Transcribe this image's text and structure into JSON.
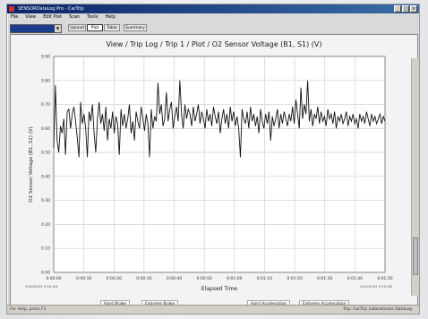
{
  "window": {
    "title": "SENSORDataLog Pro - CarTrip",
    "controls": [
      "_",
      "□",
      "×"
    ]
  },
  "menubar": {
    "items": [
      "File",
      "View",
      "Edit Plot",
      "Scan",
      "Tools",
      "Help"
    ]
  },
  "toolbar": {
    "combo_value": "",
    "buttons": [
      "Upload",
      "Plot",
      "Table",
      "Summary"
    ]
  },
  "plot": {
    "start_date": "3/10/2003 9:18 AM",
    "end_date": "3/10/2003 9:19 AM"
  },
  "legend": {
    "items": [
      "Hard Brake",
      "Extreme Brake",
      "Hard Acceleration",
      "Extreme Acceleration"
    ]
  },
  "statusbar": {
    "left": "For Help, press F1",
    "right": "Trip: CarTrip Laboratories DataLog"
  },
  "chart_data": {
    "type": "line",
    "title": "View / Trip Log / Trip 1 / Plot / O2 Sensor Voltage (B1, S1) (V)",
    "xlabel": "Elapsed Time",
    "ylabel": "O2 Sensor Voltage (B1, S1) (V)",
    "ylim": [
      0,
      0.9
    ],
    "yticks": [
      "0.00",
      "0.10",
      "0.20",
      "0.30",
      "0.40",
      "0.50",
      "0.60",
      "0.70",
      "0.80",
      "0.90"
    ],
    "xticks": [
      "0:00:00",
      "0:00:10",
      "0:00:20",
      "0:00:30",
      "0:00:40",
      "0:00:50",
      "0:01:00",
      "0:01:10",
      "0:01:20",
      "0:01:30",
      "0:01:40",
      "0:01:50"
    ],
    "grid": true,
    "series": [
      {
        "values": [
          0.52,
          0.78,
          0.55,
          0.5,
          0.61,
          0.58,
          0.64,
          0.49,
          0.67,
          0.68,
          0.6,
          0.66,
          0.69,
          0.63,
          0.56,
          0.48,
          0.71,
          0.62,
          0.66,
          0.6,
          0.48,
          0.67,
          0.63,
          0.7,
          0.58,
          0.5,
          0.64,
          0.71,
          0.62,
          0.66,
          0.59,
          0.69,
          0.55,
          0.64,
          0.6,
          0.67,
          0.58,
          0.65,
          0.62,
          0.49,
          0.68,
          0.61,
          0.66,
          0.6,
          0.64,
          0.7,
          0.58,
          0.63,
          0.55,
          0.67,
          0.63,
          0.6,
          0.69,
          0.64,
          0.59,
          0.66,
          0.62,
          0.48,
          0.68,
          0.6,
          0.65,
          0.63,
          0.79,
          0.66,
          0.7,
          0.61,
          0.64,
          0.75,
          0.63,
          0.68,
          0.71,
          0.6,
          0.65,
          0.69,
          0.63,
          0.8,
          0.66,
          0.6,
          0.7,
          0.64,
          0.68,
          0.66,
          0.61,
          0.69,
          0.63,
          0.66,
          0.7,
          0.62,
          0.67,
          0.64,
          0.6,
          0.68,
          0.63,
          0.66,
          0.61,
          0.69,
          0.65,
          0.62,
          0.67,
          0.58,
          0.64,
          0.68,
          0.62,
          0.66,
          0.6,
          0.69,
          0.63,
          0.67,
          0.61,
          0.65,
          0.6,
          0.48,
          0.68,
          0.64,
          0.62,
          0.67,
          0.6,
          0.69,
          0.63,
          0.66,
          0.61,
          0.65,
          0.58,
          0.68,
          0.63,
          0.6,
          0.66,
          0.62,
          0.67,
          0.55,
          0.65,
          0.61,
          0.64,
          0.68,
          0.6,
          0.66,
          0.62,
          0.67,
          0.64,
          0.61,
          0.66,
          0.63,
          0.69,
          0.62,
          0.72,
          0.66,
          0.6,
          0.77,
          0.64,
          0.7,
          0.66,
          0.8,
          0.63,
          0.68,
          0.61,
          0.66,
          0.64,
          0.69,
          0.62,
          0.67,
          0.63,
          0.65,
          0.61,
          0.68,
          0.64,
          0.66,
          0.62,
          0.67,
          0.6,
          0.65,
          0.63,
          0.66,
          0.62,
          0.64,
          0.67,
          0.61,
          0.65,
          0.63,
          0.66,
          0.62,
          0.64,
          0.6,
          0.66,
          0.63,
          0.65,
          0.62,
          0.67,
          0.64,
          0.61,
          0.66,
          0.63,
          0.65,
          0.62,
          0.64,
          0.66,
          0.62,
          0.65,
          0.63
        ]
      }
    ]
  }
}
